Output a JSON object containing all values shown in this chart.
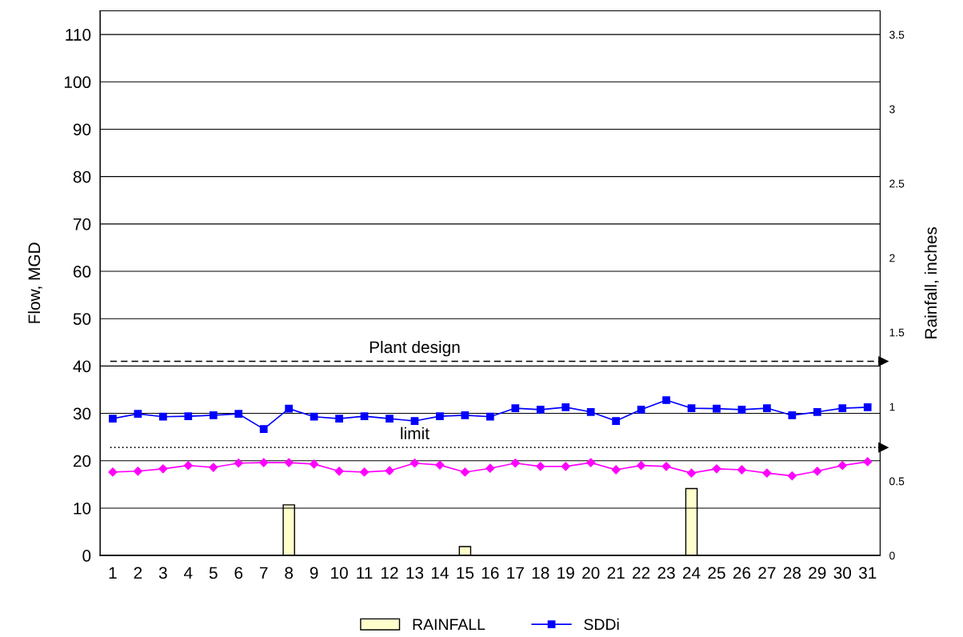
{
  "chart_data": {
    "type": "line",
    "categories": [
      "1",
      "2",
      "3",
      "4",
      "5",
      "6",
      "7",
      "8",
      "9",
      "10",
      "11",
      "12",
      "13",
      "14",
      "15",
      "16",
      "17",
      "18",
      "19",
      "20",
      "21",
      "22",
      "23",
      "24",
      "25",
      "26",
      "27",
      "28",
      "29",
      "30",
      "31"
    ],
    "ylabel": "Flow, MGD",
    "y2label": "Rainfall, inches",
    "ylim": [
      0,
      115
    ],
    "yticks": [
      0,
      10,
      20,
      30,
      40,
      50,
      60,
      70,
      80,
      90,
      100,
      110
    ],
    "y2lim": [
      0,
      3.66
    ],
    "y2ticks": [
      0,
      0.5,
      1,
      1.5,
      2,
      2.5,
      3,
      3.5
    ],
    "grid": "y",
    "legend": "bottom",
    "series": [
      {
        "name": "RAINFALL",
        "type": "bar",
        "axis": "y2",
        "color": "#ffffcc",
        "values": [
          null,
          null,
          null,
          null,
          null,
          null,
          null,
          0.34,
          null,
          null,
          null,
          null,
          null,
          null,
          0.06,
          null,
          null,
          null,
          null,
          null,
          null,
          null,
          null,
          0.45,
          null,
          null,
          null,
          null,
          null,
          null,
          null
        ]
      },
      {
        "name": "SDDi",
        "type": "line",
        "color": "#0000ff",
        "marker": "square",
        "values": [
          28.9,
          29.9,
          29.3,
          29.4,
          29.6,
          29.9,
          26.7,
          31.0,
          29.3,
          28.9,
          29.4,
          28.9,
          28.4,
          29.4,
          29.6,
          29.3,
          31.1,
          30.8,
          31.3,
          30.3,
          28.4,
          30.8,
          32.8,
          31.1,
          31.0,
          30.8,
          31.1,
          29.6,
          30.3,
          31.1,
          31.3
        ]
      },
      {
        "color": "#ff00ff",
        "marker": "diamond",
        "values": [
          17.6,
          17.8,
          18.3,
          19.0,
          18.6,
          19.5,
          19.6,
          19.6,
          19.3,
          17.8,
          17.6,
          17.9,
          19.5,
          19.1,
          17.6,
          18.4,
          19.5,
          18.8,
          18.8,
          19.6,
          18.1,
          19.0,
          18.8,
          17.4,
          18.3,
          18.1,
          17.4,
          16.8,
          17.8,
          19.0,
          19.8
        ]
      }
    ],
    "ref_lines": [
      {
        "axis": "y",
        "value": 41,
        "label": "Plant design",
        "color": "#000000",
        "line_style": "dashed"
      },
      {
        "axis": "y",
        "value": 22.8,
        "label": "limit",
        "color": "#000000",
        "line_style": "dotted"
      }
    ]
  }
}
